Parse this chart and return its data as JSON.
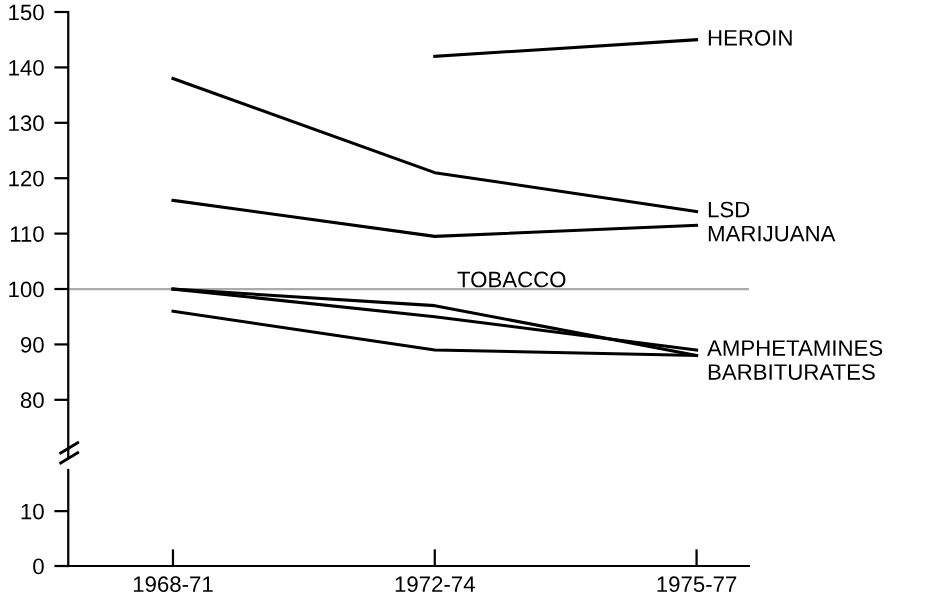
{
  "chart_data": [
    {
      "type": "line",
      "categories": [
        "1968-71",
        "1972-74",
        "1975-77"
      ],
      "ylim": [
        69.5,
        150
      ],
      "yticks": [
        80,
        90,
        100,
        110,
        120,
        130,
        140,
        150
      ],
      "tick_labels": "y",
      "series": [
        {
          "name": "HEROIN",
          "color": "#000000",
          "values": [
            null,
            142,
            145
          ]
        },
        {
          "name": "LSD",
          "color": "#000000",
          "values": [
            138,
            121,
            114
          ]
        },
        {
          "name": "MARIJUANA",
          "color": "#000000",
          "values": [
            116,
            109.5,
            111.5
          ]
        },
        {
          "color": "#000000",
          "values": [
            100,
            97,
            88
          ]
        },
        {
          "name": "AMPHETAMINES",
          "color": "#000000",
          "values": [
            100,
            95,
            89
          ]
        },
        {
          "name": "BARBITURATES",
          "color": "#000000",
          "values": [
            96,
            89,
            88
          ]
        }
      ],
      "ref_lines": [
        {
          "axis": "y",
          "value": 100,
          "color": "#aaaaaa"
        }
      ],
      "annotations": [
        {
          "text": "TOBACCO",
          "x": "1972-74",
          "y": 97
        }
      ]
    },
    {
      "type": "line",
      "categories": [
        "1968-71",
        "1972-74",
        "1975-77"
      ],
      "ylim": [
        0,
        17.5
      ],
      "yticks": [
        0,
        10
      ]
    }
  ]
}
